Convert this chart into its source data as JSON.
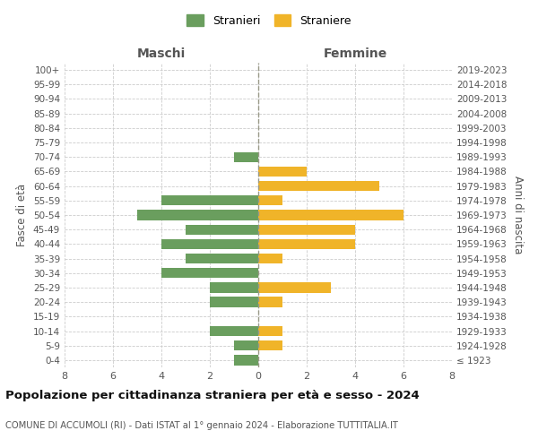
{
  "age_groups": [
    "100+",
    "95-99",
    "90-94",
    "85-89",
    "80-84",
    "75-79",
    "70-74",
    "65-69",
    "60-64",
    "55-59",
    "50-54",
    "45-49",
    "40-44",
    "35-39",
    "30-34",
    "25-29",
    "20-24",
    "15-19",
    "10-14",
    "5-9",
    "0-4"
  ],
  "birth_years": [
    "≤ 1923",
    "1924-1928",
    "1929-1933",
    "1934-1938",
    "1939-1943",
    "1944-1948",
    "1949-1953",
    "1954-1958",
    "1959-1963",
    "1964-1968",
    "1969-1973",
    "1974-1978",
    "1979-1983",
    "1984-1988",
    "1989-1993",
    "1994-1998",
    "1999-2003",
    "2004-2008",
    "2009-2013",
    "2014-2018",
    "2019-2023"
  ],
  "males": [
    0,
    0,
    0,
    0,
    0,
    0,
    1,
    0,
    0,
    4,
    5,
    3,
    4,
    3,
    4,
    2,
    2,
    0,
    2,
    1,
    1
  ],
  "females": [
    0,
    0,
    0,
    0,
    0,
    0,
    0,
    2,
    5,
    1,
    6,
    4,
    4,
    1,
    0,
    3,
    1,
    0,
    1,
    1,
    0
  ],
  "male_color": "#6a9e5e",
  "female_color": "#f0b429",
  "title": "Popolazione per cittadinanza straniera per età e sesso - 2024",
  "subtitle": "COMUNE DI ACCUMOLI (RI) - Dati ISTAT al 1° gennaio 2024 - Elaborazione TUTTITALIA.IT",
  "legend_male": "Stranieri",
  "legend_female": "Straniere",
  "xlabel_left": "Maschi",
  "xlabel_right": "Femmine",
  "ylabel_left": "Fasce di età",
  "ylabel_right": "Anni di nascita",
  "xlim": 8,
  "background_color": "#ffffff",
  "grid_color": "#cccccc"
}
